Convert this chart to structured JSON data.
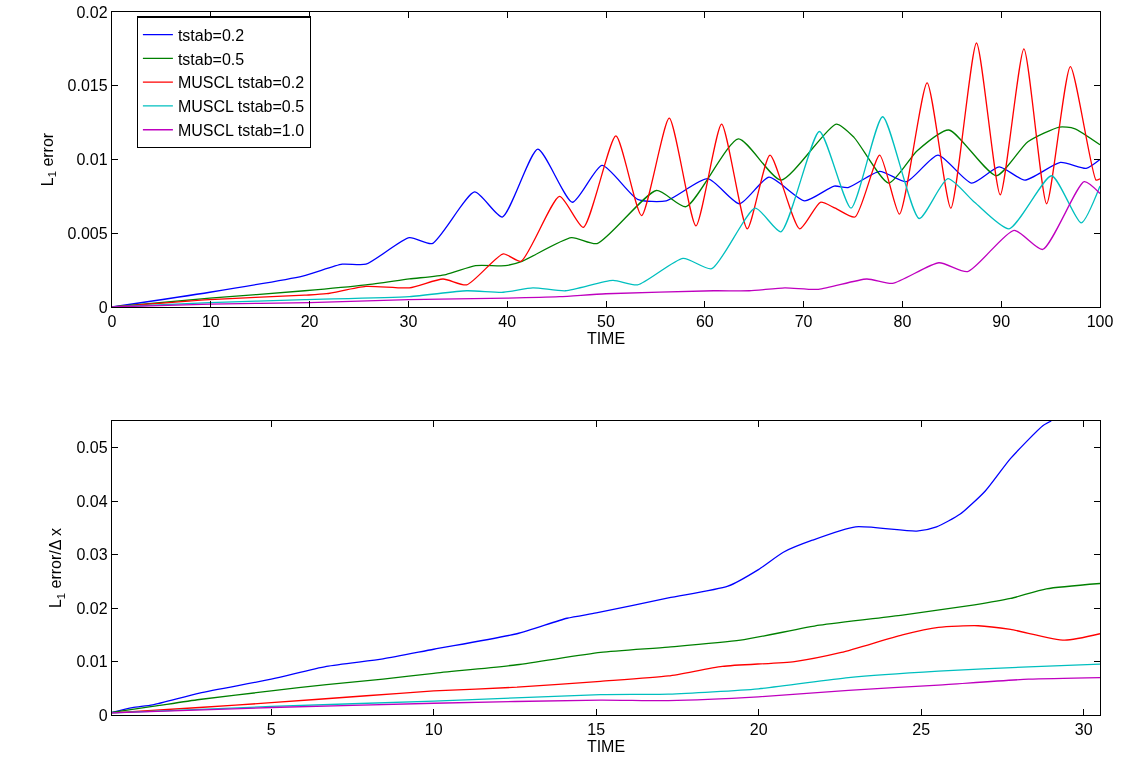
{
  "chart_data": [
    {
      "type": "line",
      "xlabel": "TIME",
      "ylabel": "L$_{1}$ error",
      "xlim": [
        0,
        100
      ],
      "ylim": [
        0,
        0.02
      ],
      "xticks": [
        0,
        10,
        20,
        30,
        40,
        50,
        60,
        70,
        80,
        90,
        100
      ],
      "yticks": [
        0,
        0.005,
        0.01,
        0.015,
        0.02
      ],
      "grid": false,
      "legend": "top left",
      "series": [
        {
          "name": "tstab=0.2",
          "color": "#0000ff",
          "x": [
            0,
            9.9,
            19.3,
            23.3,
            25.7,
            30.1,
            32.4,
            36.7,
            39.5,
            43.1,
            46.6,
            49.6,
            53.2,
            56.1,
            60.3,
            63.5,
            66.5,
            70.1,
            73.1,
            74.5,
            77.7,
            80.4,
            83.6,
            87.0,
            89.8,
            92.4,
            96.0,
            98.6,
            100
          ],
          "values": [
            0,
            0.001,
            0.0021,
            0.0029,
            0.0029,
            0.0047,
            0.0043,
            0.0078,
            0.0061,
            0.0107,
            0.0071,
            0.0096,
            0.0073,
            0.0072,
            0.0087,
            0.007,
            0.0088,
            0.0072,
            0.0082,
            0.0081,
            0.0092,
            0.0085,
            0.0103,
            0.0084,
            0.0095,
            0.0086,
            0.0098,
            0.0094,
            0.01
          ]
        },
        {
          "name": "tstab=0.5",
          "color": "#008000",
          "x": [
            0,
            9.9,
            19.5,
            25.7,
            30.1,
            33.8,
            36.8,
            39.8,
            41.5,
            46.5,
            49.1,
            55.1,
            58.1,
            63.4,
            67.7,
            73.3,
            75.1,
            78.6,
            81.5,
            84.7,
            89.5,
            92.7,
            95.9,
            97.4,
            100
          ],
          "values": [
            0,
            0.0006,
            0.0011,
            0.0015,
            0.0019,
            0.0022,
            0.0028,
            0.0028,
            0.0031,
            0.0047,
            0.0043,
            0.0079,
            0.0068,
            0.0114,
            0.0086,
            0.0124,
            0.0115,
            0.0084,
            0.0106,
            0.012,
            0.0089,
            0.0112,
            0.0122,
            0.0121,
            0.011
          ]
        },
        {
          "name": "MUSCL tstab=0.2",
          "color": "#ff0000",
          "x": [
            0,
            9.9,
            19.5,
            21.7,
            25.7,
            30.1,
            33.5,
            35.9,
            39.6,
            41.4,
            45.3,
            47.7,
            51.0,
            53.6,
            56.4,
            59.1,
            61.7,
            64.3,
            66.6,
            69.6,
            71.7,
            73.2,
            75.2,
            77.7,
            79.7,
            82.5,
            84.9,
            87.5,
            89.9,
            92.3,
            94.6,
            97.0,
            99.6,
            100
          ],
          "values": [
            0,
            0.0005,
            0.0008,
            0.0009,
            0.0014,
            0.0013,
            0.0019,
            0.0015,
            0.0036,
            0.0031,
            0.0075,
            0.0054,
            0.0116,
            0.0062,
            0.0128,
            0.0055,
            0.0124,
            0.0053,
            0.0103,
            0.0053,
            0.0071,
            0.0067,
            0.0061,
            0.0103,
            0.0063,
            0.0152,
            0.0067,
            0.0179,
            0.0076,
            0.0175,
            0.007,
            0.0163,
            0.0086,
            0.0087
          ]
        },
        {
          "name": "MUSCL tstab=0.5",
          "color": "#00bfbf",
          "x": [
            0,
            9.9,
            19.5,
            30.1,
            35.9,
            39.6,
            42.6,
            45.9,
            50.7,
            53.2,
            57.8,
            60.7,
            65.1,
            67.7,
            71.6,
            74.8,
            78.0,
            81.7,
            84.6,
            87.3,
            90.8,
            95.1,
            98.1,
            100
          ],
          "values": [
            0,
            0.0003,
            0.0005,
            0.0007,
            0.0011,
            0.001,
            0.0013,
            0.0011,
            0.0018,
            0.0015,
            0.0033,
            0.0026,
            0.0067,
            0.0051,
            0.0119,
            0.0067,
            0.0129,
            0.006,
            0.0087,
            0.0071,
            0.0053,
            0.0089,
            0.0057,
            0.0082
          ]
        },
        {
          "name": "MUSCL tstab=1.0",
          "color": "#bf00bf",
          "x": [
            0,
            10,
            20,
            30,
            40,
            45.3,
            50,
            60.9,
            64.5,
            68.1,
            71.5,
            76.4,
            79.0,
            83.7,
            86.6,
            91.3,
            94.2,
            98.4,
            100
          ],
          "values": [
            0,
            0.0002,
            0.0003,
            0.0005,
            0.0006,
            0.0007,
            0.0009,
            0.0011,
            0.0011,
            0.0013,
            0.0012,
            0.0019,
            0.0016,
            0.003,
            0.0024,
            0.0052,
            0.0039,
            0.0085,
            0.0077
          ]
        }
      ]
    },
    {
      "type": "line",
      "xlabel": "TIME",
      "ylabel": "L$_{1}$ error/Δ x",
      "xlim": [
        0.1,
        30.5
      ],
      "ylim": [
        0,
        0.055
      ],
      "xticks": [
        5,
        10,
        15,
        20,
        25,
        30
      ],
      "yticks": [
        0,
        0.01,
        0.02,
        0.03,
        0.04,
        0.05
      ],
      "grid": false,
      "legend": false,
      "series": [
        {
          "color": "#0000ff",
          "x": [
            0.1,
            0.73,
            1.35,
            2.79,
            5,
            6.7,
            8.44,
            10,
            12.56,
            14.1,
            15.0,
            17.22,
            19.05,
            19.99,
            20.77,
            21.65,
            22.98,
            24.86,
            25.47,
            26.2,
            26.97,
            27.75,
            28.74,
            29.0
          ],
          "values": [
            0.0005,
            0.0014,
            0.0019,
            0.0041,
            0.0067,
            0.0091,
            0.0105,
            0.0123,
            0.0152,
            0.0181,
            0.0191,
            0.0219,
            0.0241,
            0.0272,
            0.0305,
            0.0327,
            0.0352,
            0.0344,
            0.0352,
            0.0376,
            0.0419,
            0.048,
            0.0541,
            0.055
          ]
        },
        {
          "color": "#008000",
          "x": [
            0.1,
            1.35,
            2.79,
            5,
            6.7,
            8.44,
            10,
            12.56,
            15.13,
            17.22,
            19.44,
            21.87,
            24.42,
            26.64,
            27.75,
            28.85,
            30.5
          ],
          "values": [
            0.0005,
            0.0016,
            0.0029,
            0.0045,
            0.0057,
            0.0067,
            0.0078,
            0.0094,
            0.0117,
            0.0127,
            0.014,
            0.0168,
            0.0187,
            0.0206,
            0.0218,
            0.0236,
            0.0246
          ]
        },
        {
          "color": "#ff0000",
          "x": [
            0.1,
            2.79,
            5,
            7.93,
            10,
            12.56,
            15.13,
            17.22,
            18.88,
            21.1,
            22.54,
            24.42,
            25.53,
            26.75,
            27.75,
            29.41,
            30.5
          ],
          "values": [
            0.0004,
            0.0014,
            0.0023,
            0.0036,
            0.0045,
            0.0052,
            0.0063,
            0.0073,
            0.0091,
            0.01,
            0.0117,
            0.015,
            0.0164,
            0.0167,
            0.016,
            0.014,
            0.0152
          ]
        },
        {
          "color": "#00bfbf",
          "x": [
            0.1,
            5,
            10,
            15.13,
            17.22,
            19.99,
            22.76,
            25.53,
            28.3,
            30.5
          ],
          "values": [
            0.0004,
            0.0016,
            0.0026,
            0.0038,
            0.0039,
            0.0049,
            0.007,
            0.0082,
            0.009,
            0.0095
          ]
        },
        {
          "color": "#bf00bf",
          "x": [
            0.1,
            5,
            10,
            15.13,
            17.22,
            19.99,
            22.76,
            25.53,
            28.3,
            30.5
          ],
          "values": [
            0.0004,
            0.0014,
            0.0022,
            0.0028,
            0.0027,
            0.0034,
            0.0046,
            0.0056,
            0.0067,
            0.007
          ]
        }
      ]
    }
  ]
}
